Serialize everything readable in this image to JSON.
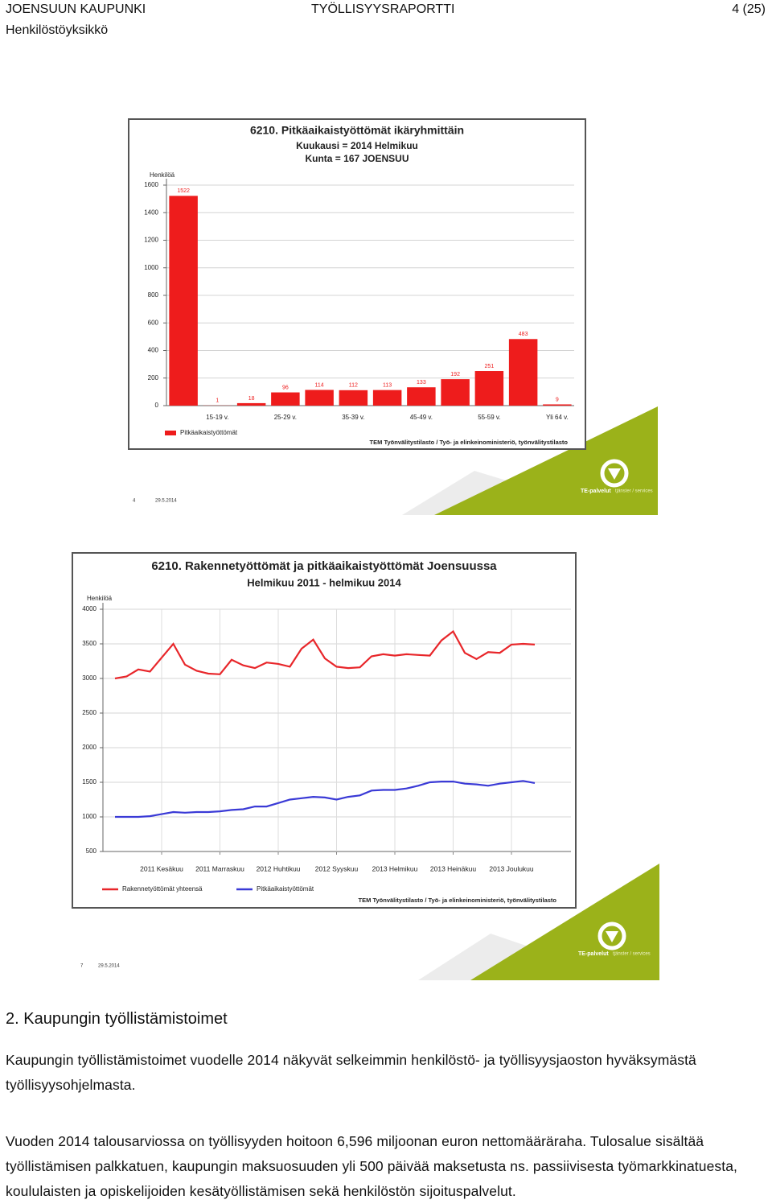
{
  "header": {
    "organization": "JOENSUUN KAUPUNKI",
    "unit": "Henkilöstöyksikkö",
    "report": "TYÖLLISYYSRAPORTTI",
    "page": "4 (25)"
  },
  "chart_data": [
    {
      "type": "bar",
      "title_lines": [
        "6210. Pitkäaikaistyöttömät ikäryhmittäin",
        "Kuukausi = 2014 Helmikuu",
        "Kunta = 167 JOENSUU"
      ],
      "ylabel": "Henkilöä",
      "categories": [
        null,
        "15-19 v.",
        null,
        "25-29 v.",
        null,
        "35-39 v.",
        null,
        "45-49 v.",
        null,
        "55-59 v.",
        null,
        "Yli 64 v."
      ],
      "series": [
        {
          "name": "Pitkäaikaistyöttömät",
          "color": "#ee1c1c",
          "values": [
            1522,
            1,
            18,
            96,
            114,
            112,
            113,
            133,
            192,
            251,
            483,
            9
          ]
        }
      ],
      "ylim": [
        0,
        1600
      ],
      "yticks": [
        0,
        200,
        400,
        600,
        800,
        1000,
        1200,
        1400,
        1600
      ],
      "grid": true,
      "source": "TEM Työnvälitystilasto / Työ- ja elinkeinoministeriö, työnvälitystilasto"
    },
    {
      "type": "line",
      "title_lines": [
        "6210. Rakennetyöttömät ja pitkäaikaistyöttömät Joensuussa",
        "Helmikuu 2011 - helmikuu 2014"
      ],
      "ylabel": "Henkilöä",
      "categories": [
        null,
        null,
        null,
        null,
        "2011 Kesäkuu",
        null,
        null,
        null,
        null,
        "2011 Marraskuu",
        null,
        null,
        null,
        null,
        "2012 Huhtikuu",
        null,
        null,
        null,
        null,
        "2012 Syyskuu",
        null,
        null,
        null,
        null,
        "2013 Helmikuu",
        null,
        null,
        null,
        null,
        "2013 Heinäkuu",
        null,
        null,
        null,
        null,
        "2013 Joulukuu",
        null,
        null
      ],
      "series": [
        {
          "name": "Rakennetyöttömät yhteensä",
          "color": "#e8262a",
          "values": [
            3000,
            3030,
            3130,
            3100,
            3300,
            3500,
            3200,
            3110,
            3070,
            3060,
            3270,
            3190,
            3150,
            3230,
            3210,
            3170,
            3430,
            3560,
            3290,
            3170,
            3150,
            3160,
            3320,
            3350,
            3330,
            3350,
            3340,
            3330,
            3550,
            3680,
            3370,
            3280,
            3380,
            3370,
            3490,
            3500,
            3490
          ]
        },
        {
          "name": "Pitkäaikaistyöttömät",
          "color": "#3a3ad6",
          "values": [
            1000,
            1000,
            1000,
            1010,
            1040,
            1070,
            1060,
            1070,
            1070,
            1080,
            1100,
            1110,
            1150,
            1150,
            1200,
            1250,
            1270,
            1290,
            1280,
            1250,
            1290,
            1310,
            1380,
            1390,
            1390,
            1410,
            1450,
            1500,
            1510,
            1510,
            1480,
            1470,
            1450,
            1480,
            1500,
            1520,
            1490
          ]
        }
      ],
      "ylim": [
        500,
        4000
      ],
      "yticks": [
        500,
        1000,
        1500,
        2000,
        2500,
        3000,
        3500,
        4000
      ],
      "grid": true,
      "source": "TEM Työnvälitystilasto / Työ- ja elinkeinoministeriö, työnvälitystilasto"
    }
  ],
  "slides": [
    {
      "number": "4",
      "date": "29.5.2014",
      "brand": "TE-palvelut",
      "brand_sub": "tjänster / services"
    },
    {
      "number": "7",
      "date": "29.5.2014",
      "brand": "TE-palvelut",
      "brand_sub": "tjänster / services"
    }
  ],
  "section": {
    "heading": "2. Kaupungin työllistämistoimet",
    "paragraphs": [
      "Kaupungin työllistämistoimet vuodelle 2014 näkyvät selkeimmin henkilöstö- ja työllisyysjaoston hyväksymästä työllisyysohjelmasta.",
      "Vuoden 2014 talousarviossa on työllisyyden hoitoon 6,596 miljoonan euron nettomääräraha. Tulosalue sisältää työllistämisen palkkatuen, kaupungin maksuosuuden yli 500 päivää maksetusta ns. passiivisesta työmarkkinatuesta, koululaisten ja opiskelijoiden kesätyöllistämisen sekä henkilöstön sijoituspalvelut."
    ]
  }
}
